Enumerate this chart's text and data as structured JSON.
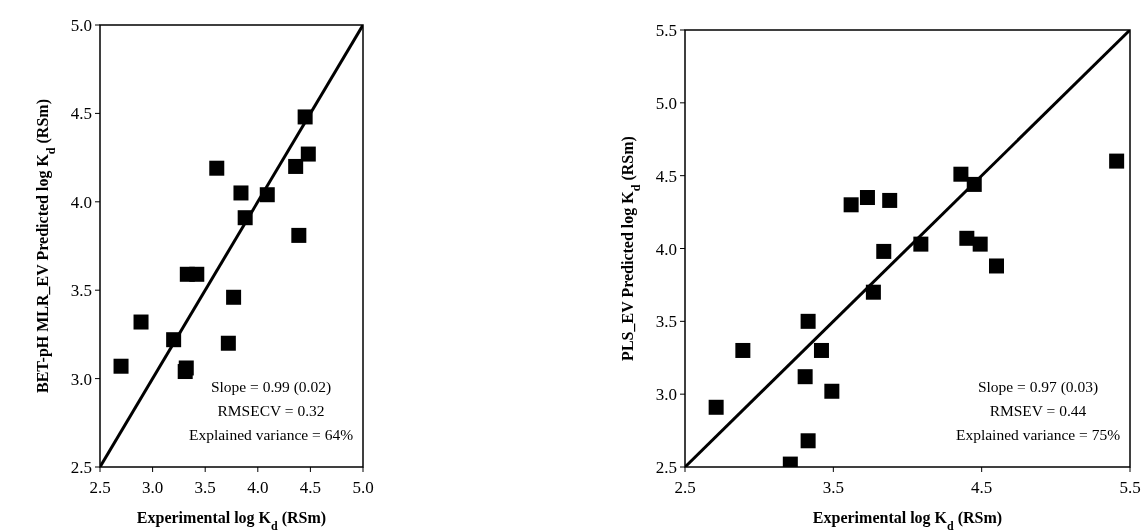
{
  "chart_data": [
    {
      "type": "scatter",
      "xlabel": "Experimental log K$_{d}$ (RSm)",
      "ylabel": "BET-pH MLR_EV Predicted log K$_{d}$ (RSm)",
      "xlim": [
        2.5,
        5.0
      ],
      "ylim": [
        2.5,
        5.0
      ],
      "xticks": [
        {
          "value": 2.5,
          "label": "2.5"
        },
        {
          "value": 3,
          "label": "3.0"
        },
        {
          "value": 3.5,
          "label": "3.5"
        },
        {
          "value": 4,
          "label": "4.0"
        },
        {
          "value": 4.5,
          "label": "4.5"
        },
        {
          "value": 5,
          "label": "5.0"
        }
      ],
      "yticks": [
        {
          "value": 2.5,
          "label": "2.5"
        },
        {
          "value": 3,
          "label": "3.0"
        },
        {
          "value": 3.5,
          "label": "3.5"
        },
        {
          "value": 4,
          "label": "4.0"
        },
        {
          "value": 4.5,
          "label": "4.5"
        },
        {
          "value": 5,
          "label": "5.0"
        }
      ],
      "grid": false,
      "series": [
        {
          "color": "#000000",
          "marker": "square",
          "x": [
            2.7,
            2.89,
            3.2,
            3.31,
            3.32,
            3.33,
            3.42,
            3.61,
            3.72,
            3.77,
            3.84,
            3.88,
            4.09,
            4.36,
            4.39,
            4.45,
            4.48
          ],
          "values": [
            3.07,
            3.32,
            3.22,
            3.04,
            3.06,
            3.59,
            3.59,
            4.19,
            3.2,
            3.46,
            4.05,
            3.91,
            4.04,
            4.2,
            3.81,
            4.48,
            4.27
          ]
        },
        {
          "type": "line",
          "color": "#000000",
          "marker": "none",
          "x": [
            2.5,
            5.0
          ],
          "values": [
            2.5,
            5.0
          ]
        }
      ],
      "annotations": [
        "Slope = 0.99 (0.02)",
        "RMSECV = 0.32",
        "Explained variance = 64%"
      ]
    },
    {
      "type": "scatter",
      "xlabel": "Experimental log K$_{d}$ (RSm)",
      "ylabel": "PLS_EV Predicted log K$_{d}$ (RSm)",
      "xlim": [
        2.5,
        5.5
      ],
      "ylim": [
        2.5,
        5.5
      ],
      "xticks": [
        2.5,
        3.5,
        4.5,
        5.5
      ],
      "yticks": [
        2.5,
        {
          "value": 3,
          "label": "3.0"
        },
        3.5,
        {
          "value": 4,
          "label": "4.0"
        },
        4.5,
        {
          "value": 5,
          "label": "5.0"
        },
        5.5
      ],
      "grid": false,
      "series": [
        {
          "color": "#000000",
          "marker": "square",
          "x": [
            2.71,
            2.89,
            3.21,
            3.31,
            3.33,
            3.33,
            3.42,
            3.49,
            3.62,
            3.73,
            3.77,
            3.84,
            3.88,
            4.09,
            4.36,
            4.4,
            4.45,
            4.49,
            4.6,
            5.41
          ],
          "values": [
            2.91,
            3.3,
            2.52,
            3.12,
            3.5,
            2.68,
            3.3,
            3.02,
            4.3,
            4.35,
            3.7,
            3.98,
            4.33,
            4.03,
            4.51,
            4.07,
            4.44,
            4.03,
            3.88,
            4.6
          ]
        },
        {
          "type": "line",
          "color": "#000000",
          "marker": "none",
          "x": [
            2.5,
            5.5
          ],
          "values": [
            2.5,
            5.5
          ]
        }
      ],
      "annotations": [
        "Slope = 0.97 (0.03)",
        "RMSEV = 0.44",
        "Explained variance = 75%"
      ]
    }
  ]
}
